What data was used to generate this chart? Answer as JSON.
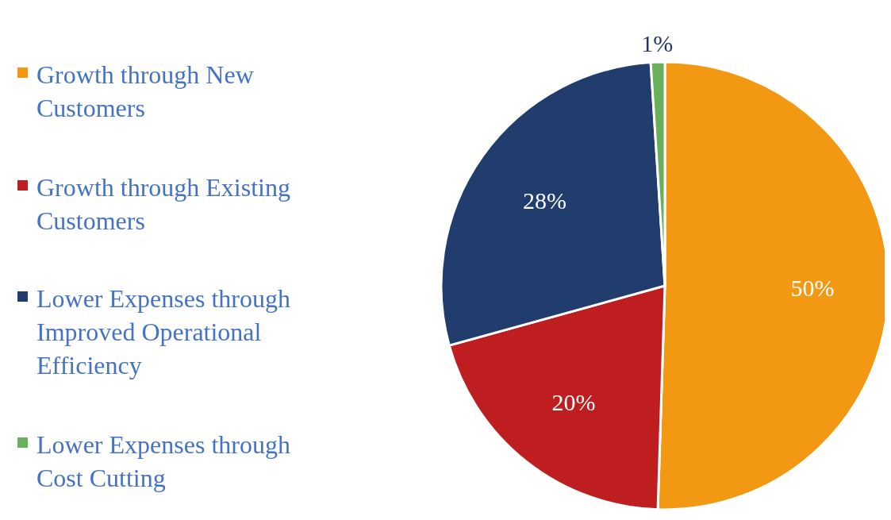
{
  "chart_data": {
    "type": "pie",
    "categories": [
      "Growth through New Customers",
      "Growth through Existing Customers",
      "Lower Expenses through Improved Operational Efficiency",
      "Lower Expenses through Cost Cutting"
    ],
    "values": [
      50,
      20,
      28,
      1
    ],
    "colors": [
      "#f39813",
      "#be1e20",
      "#203d6d",
      "#6aaf5a"
    ],
    "value_labels": [
      "50%",
      "20%",
      "28%",
      "1%"
    ],
    "legend": "left"
  }
}
